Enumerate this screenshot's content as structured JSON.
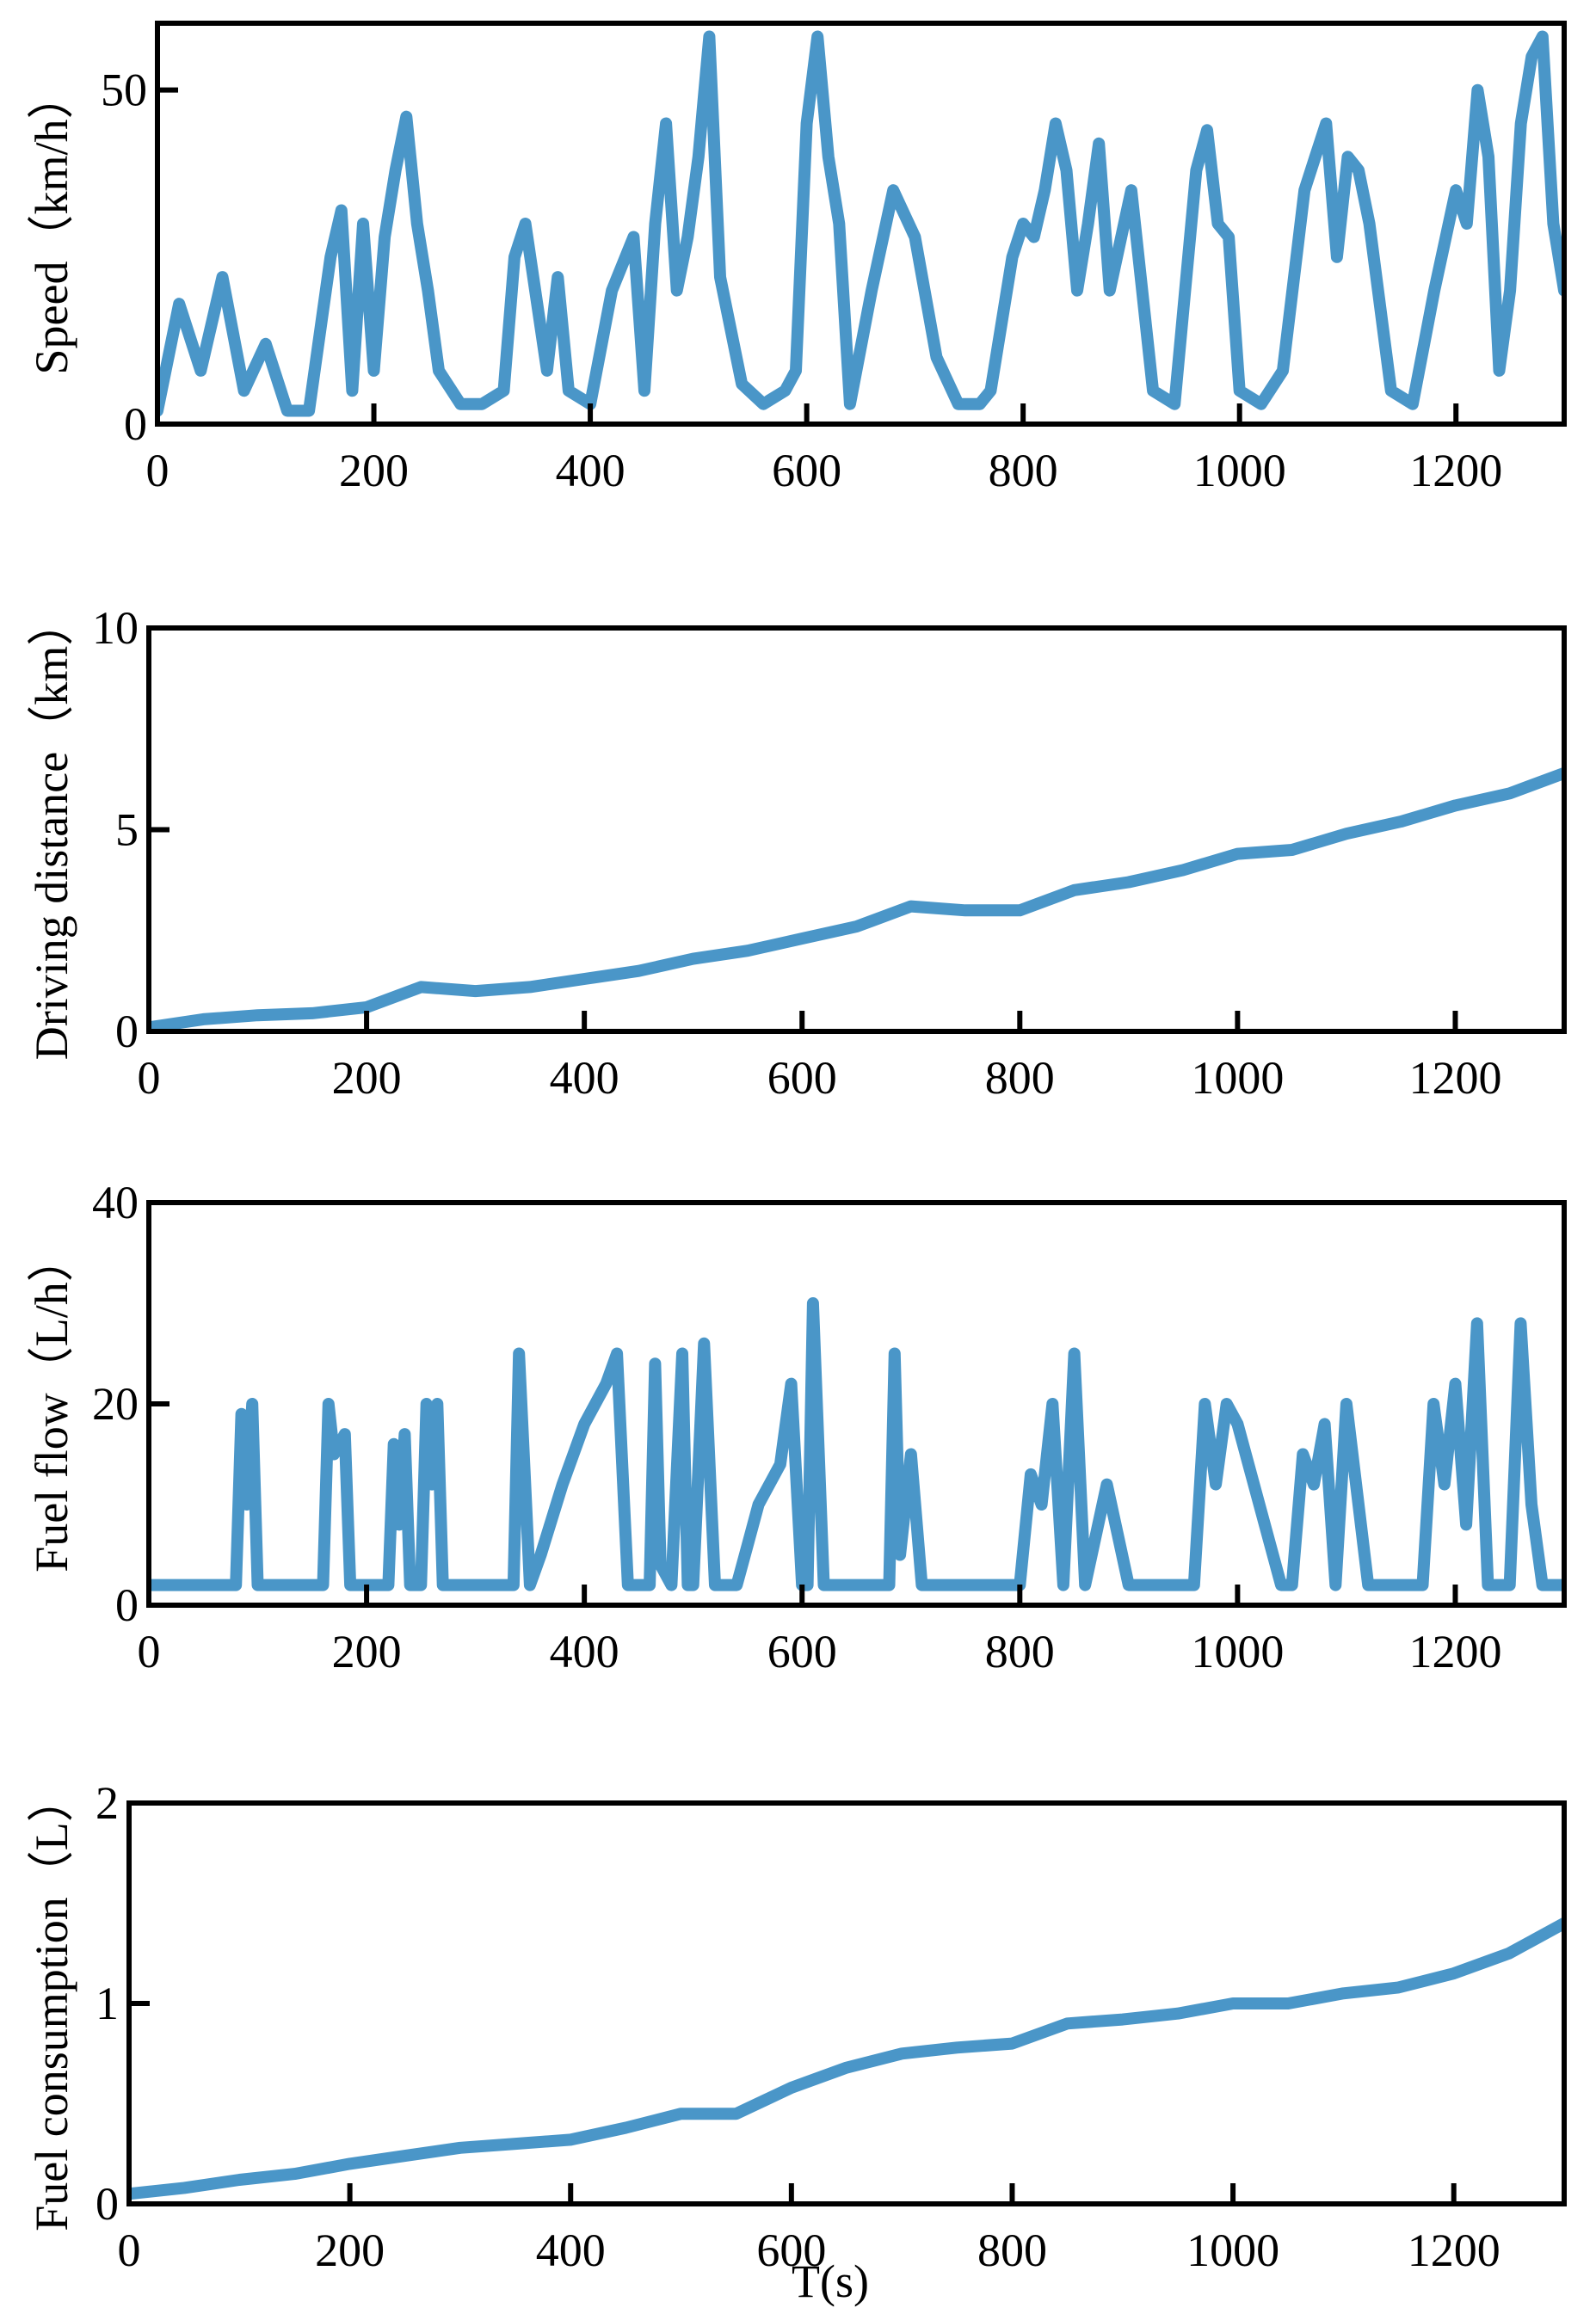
{
  "figure": {
    "line_color": "#4a96c8",
    "xlabel": "T(s)"
  },
  "chart_data": [
    {
      "type": "line",
      "ylabel": "Speed（km/h）",
      "xlim": [
        0,
        1300
      ],
      "ylim": [
        0,
        60
      ],
      "xticks": [
        0,
        200,
        400,
        600,
        800,
        1000,
        1200
      ],
      "yticks": [
        0,
        50
      ],
      "grid": false,
      "series": [
        {
          "name": "Speed",
          "x": [
            0,
            20,
            40,
            60,
            80,
            100,
            120,
            140,
            160,
            170,
            180,
            190,
            200,
            210,
            220,
            230,
            240,
            250,
            260,
            280,
            300,
            320,
            330,
            340,
            360,
            370,
            380,
            400,
            420,
            440,
            450,
            460,
            470,
            480,
            490,
            500,
            510,
            520,
            540,
            560,
            580,
            590,
            600,
            610,
            620,
            630,
            640,
            660,
            680,
            700,
            720,
            740,
            760,
            770,
            790,
            800,
            810,
            820,
            830,
            840,
            850,
            860,
            870,
            880,
            900,
            920,
            940,
            960,
            970,
            980,
            990,
            1000,
            1020,
            1040,
            1060,
            1070,
            1080,
            1090,
            1100,
            1110,
            1120,
            1140,
            1160,
            1180,
            1200,
            1210,
            1220,
            1230,
            1240,
            1250,
            1260,
            1270,
            1280,
            1290,
            1300
          ],
          "y": [
            2,
            18,
            8,
            22,
            5,
            12,
            2,
            2,
            25,
            32,
            5,
            30,
            8,
            28,
            38,
            46,
            30,
            20,
            8,
            3,
            3,
            5,
            25,
            30,
            8,
            22,
            5,
            3,
            20,
            28,
            5,
            30,
            45,
            20,
            28,
            40,
            58,
            22,
            6,
            3,
            5,
            8,
            45,
            58,
            40,
            30,
            3,
            20,
            35,
            28,
            10,
            3,
            3,
            5,
            25,
            30,
            28,
            35,
            45,
            38,
            20,
            30,
            42,
            20,
            35,
            5,
            3,
            38,
            44,
            30,
            28,
            5,
            3,
            8,
            35,
            40,
            45,
            25,
            40,
            38,
            30,
            5,
            3,
            20,
            35,
            30,
            50,
            40,
            8,
            20,
            45,
            55,
            58,
            30,
            20
          ]
        }
      ]
    },
    {
      "type": "line",
      "ylabel": "Driving distance（km）",
      "xlim": [
        0,
        1300
      ],
      "ylim": [
        0,
        10
      ],
      "xticks": [
        0,
        200,
        400,
        600,
        800,
        1000,
        1200
      ],
      "yticks": [
        0,
        5,
        10
      ],
      "grid": false,
      "series": [
        {
          "name": "Driving distance",
          "x": [
            0,
            50,
            100,
            150,
            200,
            250,
            300,
            350,
            400,
            450,
            500,
            550,
            600,
            650,
            700,
            750,
            800,
            850,
            900,
            950,
            1000,
            1050,
            1100,
            1150,
            1200,
            1250,
            1300
          ],
          "y": [
            0.1,
            0.3,
            0.4,
            0.45,
            0.6,
            1.1,
            1.0,
            1.1,
            1.3,
            1.5,
            1.8,
            2.0,
            2.3,
            2.6,
            3.1,
            3.0,
            3.0,
            3.5,
            3.7,
            4.0,
            4.4,
            4.5,
            4.9,
            5.2,
            5.6,
            5.9,
            6.4
          ]
        }
      ]
    },
    {
      "type": "line",
      "ylabel": "Fuel flow（L/h）",
      "xlim": [
        0,
        1300
      ],
      "ylim": [
        0,
        40
      ],
      "xticks": [
        0,
        200,
        400,
        600,
        800,
        1000,
        1200
      ],
      "yticks": [
        0,
        20,
        40
      ],
      "grid": false,
      "series": [
        {
          "name": "Fuel flow",
          "x": [
            0,
            80,
            85,
            90,
            95,
            100,
            160,
            165,
            170,
            180,
            185,
            220,
            225,
            230,
            235,
            240,
            250,
            255,
            260,
            265,
            270,
            335,
            340,
            350,
            360,
            380,
            400,
            420,
            430,
            440,
            450,
            460,
            465,
            470,
            480,
            490,
            495,
            500,
            510,
            520,
            530,
            540,
            550,
            560,
            580,
            590,
            600,
            605,
            610,
            620,
            625,
            660,
            680,
            685,
            690,
            700,
            710,
            780,
            800,
            810,
            820,
            830,
            840,
            850,
            860,
            880,
            900,
            920,
            960,
            970,
            980,
            990,
            1000,
            1040,
            1050,
            1060,
            1070,
            1080,
            1090,
            1100,
            1120,
            1130,
            1160,
            1170,
            1180,
            1190,
            1200,
            1210,
            1220,
            1230,
            1240,
            1250,
            1260,
            1270,
            1280,
            1300
          ],
          "y": [
            2,
            2,
            19,
            10,
            20,
            2,
            2,
            20,
            15,
            17,
            2,
            2,
            16,
            8,
            17,
            2,
            2,
            20,
            12,
            20,
            2,
            2,
            25,
            2,
            5,
            12,
            18,
            22,
            25,
            2,
            2,
            2,
            24,
            4,
            2,
            25,
            2,
            2,
            26,
            2,
            2,
            2,
            6,
            10,
            14,
            22,
            2,
            2,
            30,
            2,
            2,
            2,
            2,
            25,
            5,
            15,
            2,
            2,
            2,
            13,
            10,
            20,
            2,
            25,
            2,
            12,
            2,
            2,
            2,
            20,
            12,
            20,
            18,
            2,
            2,
            15,
            12,
            18,
            2,
            20,
            2,
            2,
            2,
            2,
            20,
            12,
            22,
            8,
            28,
            2,
            2,
            2,
            28,
            10,
            2,
            2
          ]
        }
      ]
    },
    {
      "type": "line",
      "ylabel": "Fuel consumption（L）",
      "xlim": [
        0,
        1300
      ],
      "ylim": [
        0,
        2
      ],
      "xticks": [
        0,
        200,
        400,
        600,
        800,
        1000,
        1200
      ],
      "yticks": [
        0,
        1,
        2
      ],
      "grid": false,
      "series": [
        {
          "name": "Fuel consumption",
          "x": [
            0,
            50,
            100,
            150,
            200,
            250,
            300,
            350,
            400,
            450,
            500,
            550,
            600,
            650,
            700,
            750,
            800,
            850,
            900,
            950,
            1000,
            1050,
            1100,
            1150,
            1200,
            1250,
            1300
          ],
          "y": [
            0.05,
            0.08,
            0.12,
            0.15,
            0.2,
            0.24,
            0.28,
            0.3,
            0.32,
            0.38,
            0.45,
            0.45,
            0.58,
            0.68,
            0.75,
            0.78,
            0.8,
            0.9,
            0.92,
            0.95,
            1.0,
            1.0,
            1.05,
            1.08,
            1.15,
            1.25,
            1.4
          ]
        }
      ]
    }
  ]
}
